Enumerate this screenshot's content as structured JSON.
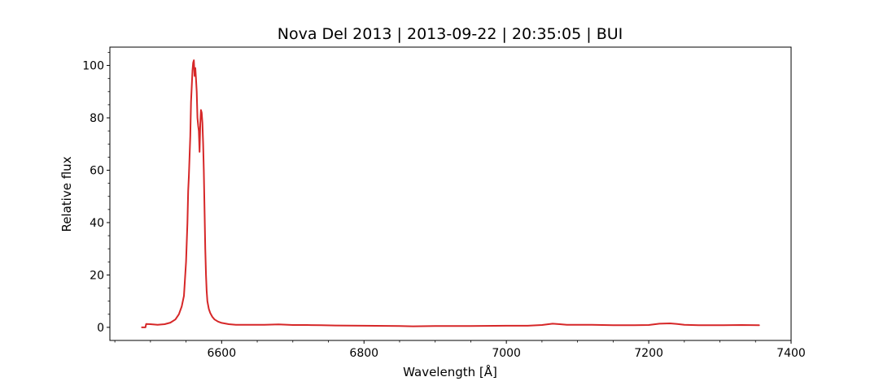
{
  "chart_data": {
    "type": "line",
    "title": "Nova Del 2013 | 2013-09-22 | 20:35:05 | BUI",
    "xlabel": "Wavelength [Å]",
    "ylabel": "Relative flux",
    "xlim": [
      6443,
      7400
    ],
    "ylim": [
      -5,
      107
    ],
    "xticks": [
      6600,
      6800,
      7000,
      7200,
      7400
    ],
    "yticks": [
      0,
      20,
      40,
      60,
      80,
      100
    ],
    "grid": false,
    "line_color": "#d62728",
    "series": [
      {
        "x": [
          6488,
          6493,
          6494,
          6500,
          6510,
          6520,
          6528,
          6535,
          6540,
          6544,
          6547,
          6550,
          6552,
          6553,
          6554,
          6555,
          6556,
          6557,
          6558,
          6559,
          6560,
          6561,
          6562,
          6563,
          6564,
          6565,
          6566,
          6567,
          6568,
          6569,
          6570,
          6571,
          6572,
          6573,
          6574,
          6575,
          6576,
          6577,
          6578,
          6579,
          6580,
          6582,
          6584,
          6587,
          6590,
          6595,
          6600,
          6610,
          6620,
          6640,
          6660,
          6680,
          6700,
          6720,
          6740,
          6760,
          6800,
          6850,
          6868,
          6900,
          6950,
          7000,
          7030,
          7050,
          7065,
          7075,
          7085,
          7100,
          7120,
          7150,
          7180,
          7200,
          7215,
          7230,
          7240,
          7250,
          7270,
          7300,
          7330,
          7355
        ],
        "y": [
          0,
          0,
          1.3,
          1.2,
          1.0,
          1.2,
          1.8,
          3,
          5,
          8,
          12,
          25,
          40,
          52,
          58,
          66,
          73,
          86,
          92,
          98,
          101,
          102,
          96,
          99,
          95,
          90,
          80,
          77,
          75,
          67,
          78,
          83,
          82,
          78,
          70,
          60,
          45,
          30,
          20,
          14,
          10,
          7,
          5.5,
          4,
          3,
          2.2,
          1.7,
          1.2,
          1.0,
          1.0,
          1.0,
          1.1,
          0.9,
          0.9,
          0.8,
          0.7,
          0.6,
          0.5,
          0.4,
          0.5,
          0.5,
          0.6,
          0.6,
          0.9,
          1.4,
          1.2,
          1.0,
          1.0,
          1.0,
          0.8,
          0.8,
          0.9,
          1.4,
          1.5,
          1.3,
          1.0,
          0.8,
          0.8,
          0.9,
          0.8
        ]
      }
    ]
  }
}
